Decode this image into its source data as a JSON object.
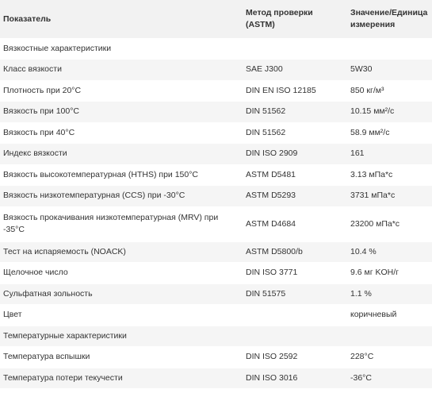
{
  "table": {
    "headers": [
      "Показатель",
      "Метод проверки (ASTM)",
      "Значение/Единица измерения"
    ],
    "rows": [
      {
        "name": "Вязкостные характеристики",
        "method": "",
        "value": "",
        "section": true
      },
      {
        "name": "Класс вязкости",
        "method": "SAE J300",
        "value": "5W30"
      },
      {
        "name": "Плотность при 20°C",
        "method": "DIN EN ISO 12185",
        "value": "850 кг/м³"
      },
      {
        "name": "Вязкость при 100°C",
        "method": "DIN 51562",
        "value": "10.15 мм²/с"
      },
      {
        "name": "Вязкость при 40°C",
        "method": "DIN 51562",
        "value": "58.9 мм²/с"
      },
      {
        "name": "Индекс вязкости",
        "method": "DIN ISO 2909",
        "value": "161"
      },
      {
        "name": "Вязкость высокотемпературная (HTHS) при 150°C",
        "method": "ASTM D5481",
        "value": "3.13 мПа*с"
      },
      {
        "name": "Вязкость низкотемпературная (CCS) при -30°C",
        "method": "ASTM D5293",
        "value": "3731 мПа*с"
      },
      {
        "name": "Вязкость прокачивания низкотемпературная (MRV) при -35°C",
        "method": "ASTM D4684",
        "value": "23200 мПа*с",
        "tall": true
      },
      {
        "name": "Тест на испаряемость (NOACK)",
        "method": "ASTM D5800/b",
        "value": "10.4 %"
      },
      {
        "name": "Щелочное число",
        "method": "DIN ISO 3771",
        "value": "9.6 мг KOH/г"
      },
      {
        "name": "Сульфатная зольность",
        "method": "DIN 51575",
        "value": "1.1 %"
      },
      {
        "name": "Цвет",
        "method": "",
        "value": "коричневый"
      },
      {
        "name": "Температурные характеристики",
        "method": "",
        "value": "",
        "section": true
      },
      {
        "name": "Температура вспышки",
        "method": "DIN ISO 2592",
        "value": "228°C"
      },
      {
        "name": "Температура потери текучести",
        "method": "DIN ISO 3016",
        "value": "-36°C"
      }
    ]
  }
}
